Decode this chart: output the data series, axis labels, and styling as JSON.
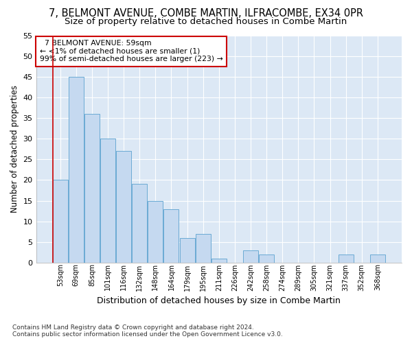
{
  "title1": "7, BELMONT AVENUE, COMBE MARTIN, ILFRACOMBE, EX34 0PR",
  "title2": "Size of property relative to detached houses in Combe Martin",
  "xlabel": "Distribution of detached houses by size in Combe Martin",
  "ylabel": "Number of detached properties",
  "footnote1": "Contains HM Land Registry data © Crown copyright and database right 2024.",
  "footnote2": "Contains public sector information licensed under the Open Government Licence v3.0.",
  "categories": [
    "53sqm",
    "69sqm",
    "85sqm",
    "101sqm",
    "116sqm",
    "132sqm",
    "148sqm",
    "164sqm",
    "179sqm",
    "195sqm",
    "211sqm",
    "226sqm",
    "242sqm",
    "258sqm",
    "274sqm",
    "289sqm",
    "305sqm",
    "321sqm",
    "337sqm",
    "352sqm",
    "368sqm"
  ],
  "values": [
    20,
    45,
    36,
    30,
    27,
    19,
    15,
    13,
    6,
    7,
    1,
    0,
    3,
    2,
    0,
    0,
    0,
    0,
    2,
    0,
    2
  ],
  "bar_color": "#c5d9f0",
  "bar_edge_color": "#6aaad4",
  "annotation_box_color": "#ffffff",
  "annotation_box_edge": "#cc0000",
  "annotation_line_color": "#cc0000",
  "annotation_title": "7 BELMONT AVENUE: 59sqm",
  "annotation_line1": "← <1% of detached houses are smaller (1)",
  "annotation_line2": "99% of semi-detached houses are larger (223) →",
  "ylim": [
    0,
    55
  ],
  "yticks": [
    0,
    5,
    10,
    15,
    20,
    25,
    30,
    35,
    40,
    45,
    50,
    55
  ],
  "fig_bg_color": "#ffffff",
  "plot_bg_color": "#dce8f5",
  "grid_color": "#ffffff",
  "title1_fontsize": 10.5,
  "title2_fontsize": 9.5,
  "xlabel_fontsize": 9,
  "ylabel_fontsize": 8.5,
  "footnote_fontsize": 6.5
}
